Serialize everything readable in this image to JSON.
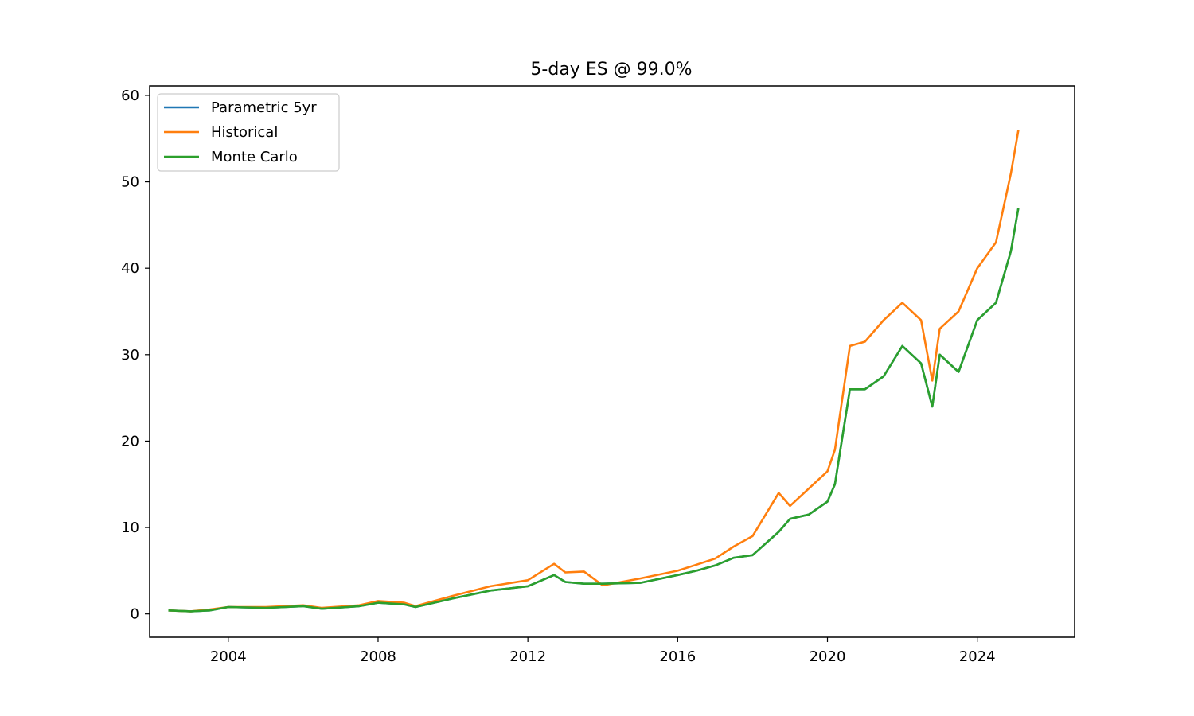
{
  "chart_data": {
    "type": "line",
    "title": "5-day ES @ 99.0%",
    "xlabel": "",
    "ylabel": "",
    "xlim": [
      2001.9,
      2026.6
    ],
    "ylim": [
      -2.7,
      61.1
    ],
    "x_ticks": [
      2004,
      2008,
      2012,
      2016,
      2020,
      2024
    ],
    "x_tick_labels": [
      "2004",
      "2008",
      "2012",
      "2016",
      "2020",
      "2024"
    ],
    "y_ticks": [
      0,
      10,
      20,
      30,
      40,
      50,
      60
    ],
    "y_tick_labels": [
      "0",
      "10",
      "20",
      "30",
      "40",
      "50",
      "60"
    ],
    "grid": false,
    "legend_position": "upper-left",
    "x": [
      2002.4,
      2003.0,
      2003.5,
      2004.0,
      2005.0,
      2006.0,
      2006.5,
      2007.5,
      2008.0,
      2008.7,
      2009.0,
      2010.0,
      2011.0,
      2012.0,
      2012.7,
      2013.0,
      2013.5,
      2014.0,
      2015.0,
      2016.0,
      2016.5,
      2017.0,
      2017.5,
      2018.0,
      2018.7,
      2019.0,
      2019.5,
      2020.0,
      2020.2,
      2020.6,
      2021.0,
      2021.5,
      2022.0,
      2022.5,
      2022.8,
      2023.0,
      2023.5,
      2024.0,
      2024.5,
      2024.9,
      2025.1
    ],
    "series": [
      {
        "name": "Parametric 5yr",
        "color": "#1f77b4",
        "values": [
          0.4,
          0.3,
          0.4,
          0.8,
          0.7,
          0.9,
          0.6,
          0.9,
          1.3,
          1.1,
          0.8,
          1.8,
          2.7,
          3.2,
          4.5,
          3.7,
          3.5,
          3.5,
          3.6,
          4.5,
          5.0,
          5.6,
          6.5,
          6.8,
          9.5,
          11.0,
          11.5,
          13.0,
          15.0,
          26.0,
          26.0,
          27.5,
          31.0,
          29.0,
          24.0,
          30.0,
          28.0,
          34.0,
          36.0,
          42.0,
          47.0
        ]
      },
      {
        "name": "Historical",
        "color": "#ff7f0e",
        "values": [
          0.4,
          0.3,
          0.5,
          0.8,
          0.8,
          1.0,
          0.7,
          1.0,
          1.5,
          1.3,
          0.9,
          2.1,
          3.2,
          3.9,
          5.8,
          4.8,
          4.9,
          3.3,
          4.1,
          5.0,
          5.7,
          6.4,
          7.8,
          9.0,
          14.0,
          12.5,
          14.5,
          16.5,
          19.0,
          31.0,
          31.5,
          34.0,
          36.0,
          34.0,
          27.0,
          33.0,
          35.0,
          40.0,
          43.0,
          51.0,
          56.0
        ]
      },
      {
        "name": "Monte Carlo",
        "color": "#2ca02c",
        "values": [
          0.4,
          0.3,
          0.4,
          0.8,
          0.7,
          0.9,
          0.6,
          0.9,
          1.3,
          1.1,
          0.8,
          1.8,
          2.7,
          3.2,
          4.5,
          3.7,
          3.5,
          3.5,
          3.6,
          4.5,
          5.0,
          5.6,
          6.5,
          6.8,
          9.5,
          11.0,
          11.5,
          13.0,
          15.0,
          26.0,
          26.0,
          27.5,
          31.0,
          29.0,
          24.0,
          30.0,
          28.0,
          34.0,
          36.0,
          42.0,
          47.0
        ]
      }
    ]
  }
}
